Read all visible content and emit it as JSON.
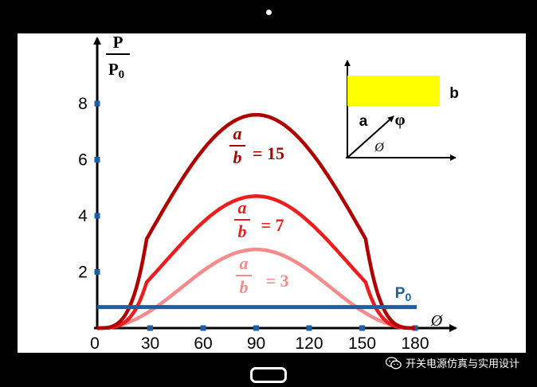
{
  "chart_data": {
    "type": "line",
    "ylabel_top": "P",
    "ylabel_bottom": "P",
    "ylabel_bottom_sub": "0",
    "xlabel": "Ø",
    "x_ticks": [
      0,
      30,
      60,
      90,
      120,
      150,
      180
    ],
    "x_tick_labels": [
      "0",
      "30",
      "60",
      "90",
      "120",
      "150",
      "180"
    ],
    "y_ticks": [
      2,
      4,
      6,
      8
    ],
    "y_tick_labels": [
      "2",
      "4",
      "6",
      "8"
    ],
    "xlim": [
      0,
      180
    ],
    "ylim": [
      0,
      9
    ],
    "series": [
      {
        "ratio_num": "a",
        "ratio_den": "b",
        "ratio_value": "= 15",
        "color": "#b00000",
        "peak": 7.6,
        "flatness": 0.72
      },
      {
        "ratio_num": "a",
        "ratio_den": "b",
        "ratio_value": "= 7",
        "color": "#ee1c1c",
        "peak": 4.7,
        "flatness": 0.5
      },
      {
        "ratio_num": "a",
        "ratio_den": "b",
        "ratio_value": "= 3",
        "color": "#f58b8b",
        "peak": 2.8,
        "flatness": 0.0
      }
    ],
    "reference_line": {
      "label": "P",
      "label_sub": "0",
      "y": 0.75,
      "color": "#1a5fa8"
    },
    "inset": {
      "label_a": "a",
      "label_b": "b",
      "label_phi": "φ",
      "label_angle": "Ø",
      "rect_color": "#ffff00"
    }
  },
  "watermark": {
    "text": "开关电源仿真与实用设计",
    "icon": "wechat-icon"
  }
}
